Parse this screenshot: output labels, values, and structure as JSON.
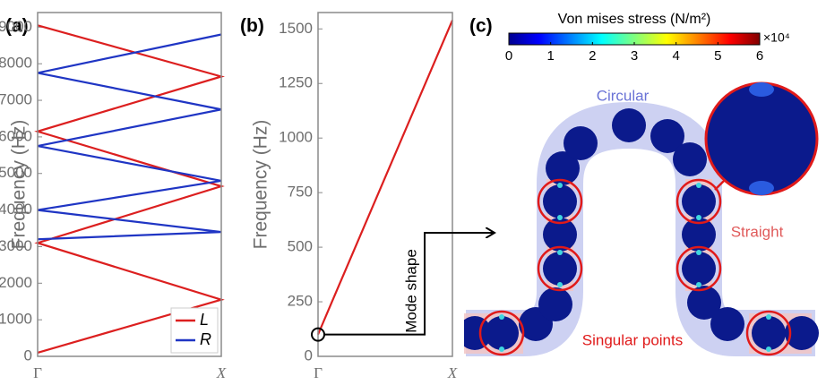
{
  "chart_data": [
    {
      "type": "line",
      "panel": "(a)",
      "ylabel": "Frequency (Hz)",
      "xlim": [
        0,
        1
      ],
      "xticks": [
        {
          "value": 0,
          "label": "Γ"
        },
        {
          "value": 1,
          "label": "X"
        }
      ],
      "ylim": [
        0,
        9400
      ],
      "yticks": [
        0,
        1000,
        2000,
        3000,
        4000,
        5000,
        6000,
        7000,
        8000,
        9000
      ],
      "legend": "lower right",
      "series": [
        {
          "name": "L",
          "color": "#dc1f1f",
          "x": [
            0,
            1,
            0,
            1,
            0,
            1,
            0
          ],
          "values": [
            100,
            1550,
            3100,
            4650,
            6150,
            7650,
            9050
          ]
        },
        {
          "name": "R",
          "color": "#1f35c4",
          "x": [
            0,
            1,
            0,
            1,
            0,
            1,
            0,
            1
          ],
          "values": [
            3200,
            3400,
            4000,
            4800,
            5750,
            6750,
            7750,
            8800
          ]
        }
      ]
    },
    {
      "type": "line",
      "panel": "(b)",
      "ylabel": "Frequency (Hz)",
      "annotation": "Mode shape",
      "xlim": [
        0,
        1
      ],
      "xticks": [
        {
          "value": 0,
          "label": "Γ"
        },
        {
          "value": 1,
          "label": "X"
        }
      ],
      "ylim": [
        0,
        1575
      ],
      "yticks": [
        0,
        250,
        500,
        750,
        1000,
        1250,
        1500
      ],
      "series": [
        {
          "color": "#dc1f1f",
          "x": [
            0,
            0.1,
            1
          ],
          "values": [
            100,
            245,
            1540
          ]
        }
      ]
    },
    {
      "type": "colorbar",
      "panel": "(c)",
      "title": "Von mises stress (N/m²)",
      "multiplier": "×10⁴",
      "clim": [
        0,
        6
      ],
      "ticks": [
        0,
        1,
        2,
        3,
        4,
        5,
        6
      ],
      "labels": {
        "circular": "Circular",
        "straight": "Straight",
        "singular": "Singular points"
      }
    }
  ]
}
